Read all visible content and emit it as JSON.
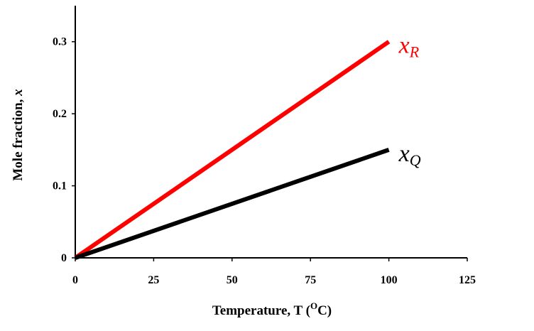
{
  "chart_data": {
    "type": "line",
    "title": "",
    "xlabel": "Temperature, T (",
    "xlabel_sup": "O",
    "xlabel_tail": "C)",
    "ylabel": "Mole fraction, ",
    "ylabel_var": "x",
    "xlim": [
      0,
      125
    ],
    "ylim": [
      0,
      0.35
    ],
    "xticks": [
      0,
      25,
      50,
      75,
      100,
      125
    ],
    "xtick_labels": [
      "0",
      "25",
      "50",
      "75",
      "100",
      "125"
    ],
    "yticks": [
      0,
      0.1,
      0.2,
      0.3
    ],
    "ytick_labels": [
      "0",
      "0.1",
      "0.2",
      "0.3"
    ],
    "grid": false,
    "legend": "none",
    "series": [
      {
        "label_main": "x",
        "label_sub": "R",
        "color": "#ff0000",
        "x": [
          0,
          100
        ],
        "y": [
          0,
          0.3
        ]
      },
      {
        "label_main": "x",
        "label_sub": "Q",
        "color": "#000000",
        "x": [
          0,
          100
        ],
        "y": [
          0,
          0.15
        ]
      }
    ]
  }
}
